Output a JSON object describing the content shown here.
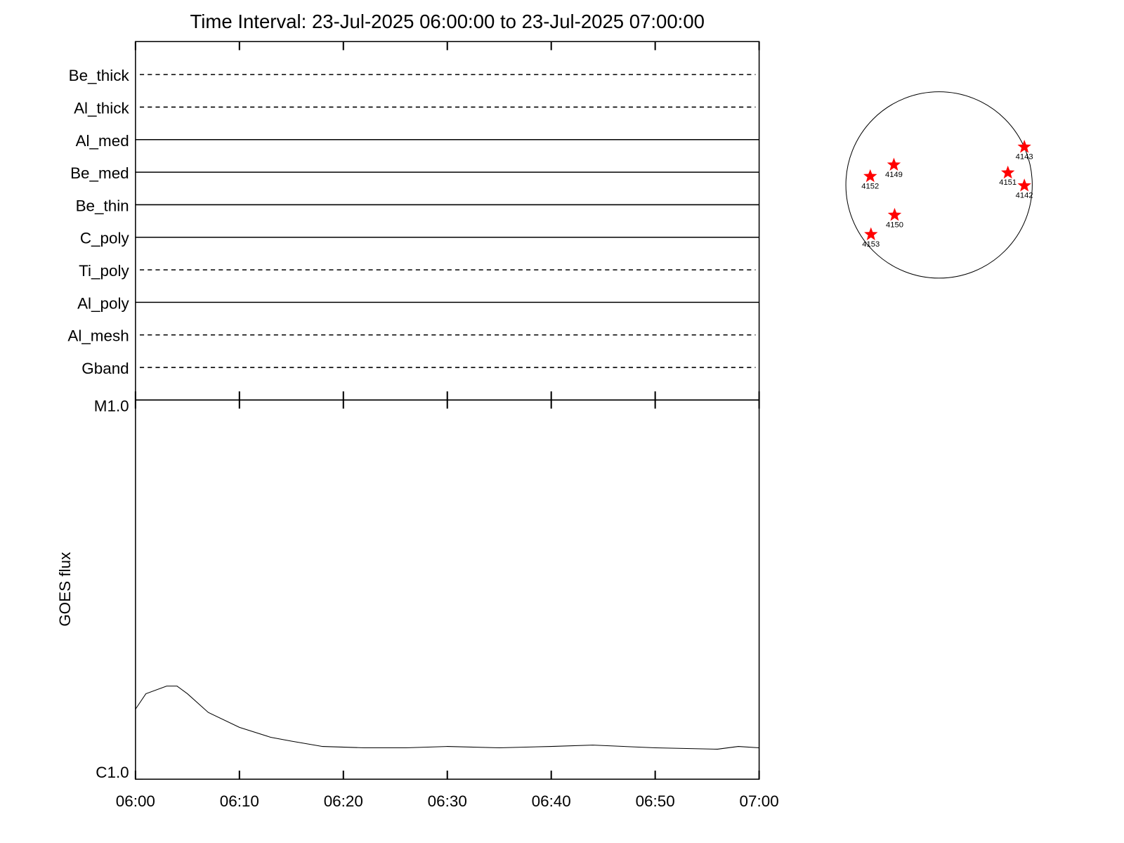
{
  "chart_data": [
    {
      "type": "timeline",
      "title": "Time Interval: 23-Jul-2025 06:00:00 to 23-Jul-2025 07:00:00",
      "categories": [
        "Be_thick",
        "Al_thick",
        "Al_med",
        "Be_med",
        "Be_thin",
        "C_poly",
        "Ti_poly",
        "Al_poly",
        "Al_mesh",
        "Gband"
      ],
      "styles": [
        "dashed",
        "dashed",
        "solid",
        "solid",
        "solid",
        "solid",
        "dashed",
        "solid",
        "dashed",
        "dashed"
      ],
      "color": "#000000"
    },
    {
      "type": "line",
      "y_label": "GOES flux",
      "log_scale": true,
      "x": [
        "06:00",
        "06:01",
        "06:03",
        "06:04",
        "06:05",
        "06:07",
        "06:10",
        "06:13",
        "06:15",
        "06:18",
        "06:22",
        "06:26",
        "06:30",
        "06:35",
        "06:40",
        "06:44",
        "06:50",
        "06:56",
        "06:58",
        "07:00"
      ],
      "values": [
        1.53e-06,
        1.68e-06,
        1.76e-06,
        1.76e-06,
        1.68e-06,
        1.5e-06,
        1.37e-06,
        1.29e-06,
        1.26e-06,
        1.22e-06,
        1.21e-06,
        1.21e-06,
        1.22e-06,
        1.21e-06,
        1.22e-06,
        1.23e-06,
        1.21e-06,
        1.2e-06,
        1.22e-06,
        1.21e-06
      ],
      "color": "#000000",
      "xlim": [
        "06:00",
        "07:00"
      ],
      "xticks": [
        "06:00",
        "06:10",
        "06:20",
        "06:30",
        "06:40",
        "06:50",
        "07:00"
      ],
      "ylim": [
        1e-06,
        1e-05
      ],
      "yticks": [
        {
          "value": 1e-06,
          "label": "C1.0"
        },
        {
          "value": 1e-05,
          "label": "M1.0"
        }
      ]
    }
  ],
  "sun": {
    "regions": [
      "4143",
      "4149",
      "4152",
      "4151",
      "4142",
      "4150",
      "4153"
    ],
    "marker_color": "#ff0000"
  }
}
